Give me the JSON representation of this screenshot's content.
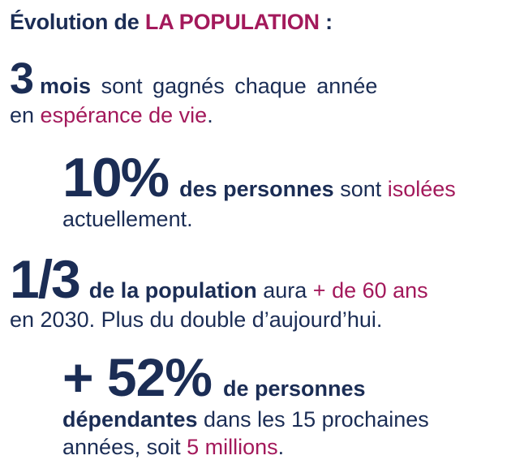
{
  "title": {
    "prefix": "Évolution de ",
    "highlight": "LA POPULATION",
    "suffix": " :"
  },
  "stats": [
    {
      "figure": "3",
      "emphasis": "mois",
      "text1": " sont gagnés chaque année",
      "line2_pre": "en ",
      "line2_highlight": "espérance de vie",
      "line2_post": "."
    },
    {
      "figure": "10%",
      "emphasis": "des personnes",
      "text1": " sont ",
      "highlight": "isolées",
      "line2": "actuellement."
    },
    {
      "figure": "1/3",
      "emphasis": "de la population",
      "text1": " aura ",
      "highlight": "+ de 60 ans",
      "line2": "en 2030. Plus du double d’aujourd’hui."
    },
    {
      "figure": "+ 52%",
      "emphasis": "de personnes",
      "line2_bold": "dépendantes",
      "line2_text": " dans les 15 prochaines",
      "line3_pre": "années, soit ",
      "line3_highlight": "5 millions",
      "line3_post": "."
    }
  ],
  "colors": {
    "navy": "#1b2d55",
    "magenta": "#a3195b"
  }
}
